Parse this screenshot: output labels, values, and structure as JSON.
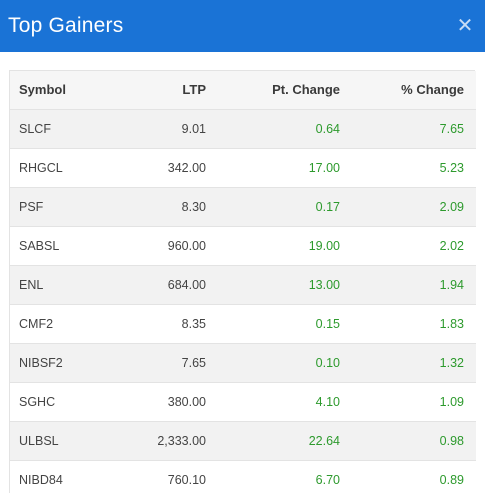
{
  "modal": {
    "title": "Top Gainers",
    "close_icon": "close-icon",
    "close_glyph": "✕"
  },
  "table": {
    "headers": {
      "symbol": "Symbol",
      "ltp": "LTP",
      "pt_change": "Pt. Change",
      "pct_change": "% Change"
    },
    "rows": [
      {
        "symbol": "SLCF",
        "ltp": "9.01",
        "pt_change": "0.64",
        "pct_change": "7.65"
      },
      {
        "symbol": "RHGCL",
        "ltp": "342.00",
        "pt_change": "17.00",
        "pct_change": "5.23"
      },
      {
        "symbol": "PSF",
        "ltp": "8.30",
        "pt_change": "0.17",
        "pct_change": "2.09"
      },
      {
        "symbol": "SABSL",
        "ltp": "960.00",
        "pt_change": "19.00",
        "pct_change": "2.02"
      },
      {
        "symbol": "ENL",
        "ltp": "684.00",
        "pt_change": "13.00",
        "pct_change": "1.94"
      },
      {
        "symbol": "CMF2",
        "ltp": "8.35",
        "pt_change": "0.15",
        "pct_change": "1.83"
      },
      {
        "symbol": "NIBSF2",
        "ltp": "7.65",
        "pt_change": "0.10",
        "pct_change": "1.32"
      },
      {
        "symbol": "SGHC",
        "ltp": "380.00",
        "pt_change": "4.10",
        "pct_change": "1.09"
      },
      {
        "symbol": "ULBSL",
        "ltp": "2,333.00",
        "pt_change": "22.64",
        "pct_change": "0.98"
      },
      {
        "symbol": "NIBD84",
        "ltp": "760.10",
        "pt_change": "6.70",
        "pct_change": "0.89"
      }
    ]
  },
  "colors": {
    "header_bg": "#1a73d6",
    "gain_text": "#2d9a2d"
  }
}
